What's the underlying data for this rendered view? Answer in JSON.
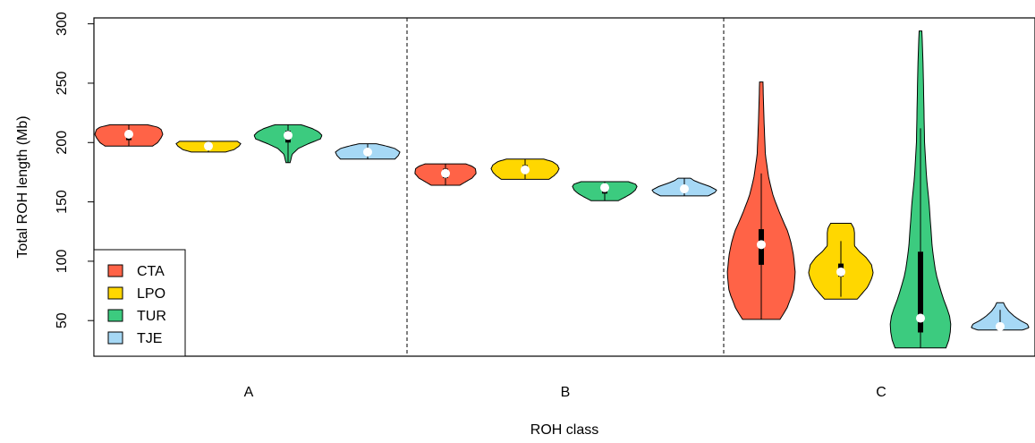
{
  "chart_data": {
    "type": "violin",
    "title": "",
    "xlabel": "ROH class",
    "ylabel": "Total ROH length (Mb)",
    "ylim": [
      20,
      305
    ],
    "yticks": [
      50,
      100,
      150,
      200,
      250,
      300
    ],
    "grid": false,
    "legend_position": "bottom-left",
    "categories": [
      "A",
      "B",
      "C"
    ],
    "series": [
      {
        "name": "CTA",
        "color": "#FF6347"
      },
      {
        "name": "LPO",
        "color": "#FFD700"
      },
      {
        "name": "TUR",
        "color": "#3CCB7F"
      },
      {
        "name": "TJE",
        "color": "#A6D8F5"
      }
    ],
    "violins": [
      {
        "category": "A",
        "series": "CTA",
        "min": 197,
        "max": 215,
        "q1": 202,
        "median": 207,
        "q3": 209,
        "profile": [
          [
            197,
            0.7
          ],
          [
            200,
            0.85
          ],
          [
            204,
            0.95
          ],
          [
            207,
            1.0
          ],
          [
            211,
            0.95
          ],
          [
            213,
            0.85
          ],
          [
            215,
            0.55
          ]
        ]
      },
      {
        "category": "A",
        "series": "LPO",
        "min": 192,
        "max": 201,
        "q1": 195,
        "median": 197,
        "q3": 199,
        "profile": [
          [
            192,
            0.5
          ],
          [
            194,
            0.75
          ],
          [
            197,
            0.9
          ],
          [
            199,
            0.95
          ],
          [
            201,
            0.85
          ]
        ]
      },
      {
        "category": "A",
        "series": "TUR",
        "min": 183,
        "max": 215,
        "q1": 200,
        "median": 206,
        "q3": 210,
        "profile": [
          [
            183,
            0.06
          ],
          [
            190,
            0.12
          ],
          [
            195,
            0.3
          ],
          [
            199,
            0.6
          ],
          [
            203,
            0.95
          ],
          [
            206,
            1.0
          ],
          [
            209,
            0.9
          ],
          [
            212,
            0.7
          ],
          [
            215,
            0.38
          ]
        ]
      },
      {
        "category": "A",
        "series": "TJE",
        "min": 186,
        "max": 199,
        "q1": 190,
        "median": 192,
        "q3": 195,
        "profile": [
          [
            186,
            0.8
          ],
          [
            189,
            0.9
          ],
          [
            192,
            0.95
          ],
          [
            195,
            0.8
          ],
          [
            197,
            0.55
          ],
          [
            199,
            0.25
          ]
        ]
      },
      {
        "category": "B",
        "series": "CTA",
        "min": 164,
        "max": 182,
        "q1": 170,
        "median": 174,
        "q3": 178,
        "profile": [
          [
            164,
            0.42
          ],
          [
            167,
            0.6
          ],
          [
            170,
            0.78
          ],
          [
            174,
            0.9
          ],
          [
            178,
            0.88
          ],
          [
            180,
            0.78
          ],
          [
            182,
            0.6
          ]
        ]
      },
      {
        "category": "B",
        "series": "LPO",
        "min": 169,
        "max": 186,
        "q1": 174,
        "median": 177,
        "q3": 181,
        "profile": [
          [
            169,
            0.7
          ],
          [
            172,
            0.85
          ],
          [
            175,
            0.95
          ],
          [
            178,
            1.0
          ],
          [
            181,
            0.95
          ],
          [
            184,
            0.8
          ],
          [
            186,
            0.55
          ]
        ]
      },
      {
        "category": "B",
        "series": "TUR",
        "min": 151,
        "max": 167,
        "q1": 157,
        "median": 162,
        "q3": 164,
        "profile": [
          [
            151,
            0.4
          ],
          [
            154,
            0.6
          ],
          [
            157,
            0.78
          ],
          [
            160,
            0.9
          ],
          [
            163,
            0.95
          ],
          [
            165,
            0.9
          ],
          [
            167,
            0.7
          ]
        ]
      },
      {
        "category": "B",
        "series": "TJE",
        "min": 155,
        "max": 170,
        "q1": 159,
        "median": 161,
        "q3": 164,
        "profile": [
          [
            155,
            0.7
          ],
          [
            158,
            0.9
          ],
          [
            160,
            0.95
          ],
          [
            163,
            0.75
          ],
          [
            166,
            0.45
          ],
          [
            168,
            0.28
          ],
          [
            170,
            0.18
          ]
        ]
      },
      {
        "category": "C",
        "series": "CTA",
        "min": 51,
        "max": 251,
        "q1": 97,
        "median": 114,
        "q3": 127,
        "whisker_low": 51,
        "whisker_high": 174,
        "profile": [
          [
            51,
            0.55
          ],
          [
            60,
            0.75
          ],
          [
            75,
            0.95
          ],
          [
            90,
            1.0
          ],
          [
            105,
            0.95
          ],
          [
            115,
            0.88
          ],
          [
            125,
            0.78
          ],
          [
            140,
            0.55
          ],
          [
            155,
            0.35
          ],
          [
            170,
            0.22
          ],
          [
            190,
            0.12
          ],
          [
            220,
            0.08
          ],
          [
            240,
            0.06
          ],
          [
            251,
            0.05
          ]
        ]
      },
      {
        "category": "C",
        "series": "LPO",
        "min": 68,
        "max": 132,
        "q1": 87,
        "median": 91,
        "q3": 98,
        "whisker_low": 70,
        "whisker_high": 117,
        "profile": [
          [
            68,
            0.48
          ],
          [
            72,
            0.6
          ],
          [
            78,
            0.78
          ],
          [
            85,
            0.9
          ],
          [
            90,
            0.95
          ],
          [
            97,
            0.9
          ],
          [
            103,
            0.75
          ],
          [
            108,
            0.55
          ],
          [
            113,
            0.4
          ],
          [
            118,
            0.4
          ],
          [
            124,
            0.4
          ],
          [
            128,
            0.38
          ],
          [
            132,
            0.3
          ]
        ]
      },
      {
        "category": "C",
        "series": "TUR",
        "min": 27,
        "max": 294,
        "q1": 40,
        "median": 52,
        "q3": 108,
        "whisker_low": 27,
        "whisker_high": 212,
        "profile": [
          [
            27,
            0.75
          ],
          [
            35,
            0.85
          ],
          [
            45,
            0.9
          ],
          [
            55,
            0.85
          ],
          [
            70,
            0.65
          ],
          [
            90,
            0.45
          ],
          [
            110,
            0.35
          ],
          [
            130,
            0.3
          ],
          [
            150,
            0.25
          ],
          [
            170,
            0.18
          ],
          [
            200,
            0.12
          ],
          [
            230,
            0.1
          ],
          [
            260,
            0.08
          ],
          [
            280,
            0.06
          ],
          [
            294,
            0.04
          ]
        ]
      },
      {
        "category": "C",
        "series": "TJE",
        "min": 42,
        "max": 65,
        "q1": 44,
        "median": 45,
        "q3": 47,
        "whisker_low": 42,
        "whisker_high": 59,
        "profile": [
          [
            42,
            0.65
          ],
          [
            44,
            0.85
          ],
          [
            47,
            0.8
          ],
          [
            50,
            0.6
          ],
          [
            54,
            0.4
          ],
          [
            58,
            0.25
          ],
          [
            62,
            0.15
          ],
          [
            65,
            0.1
          ]
        ]
      }
    ]
  }
}
